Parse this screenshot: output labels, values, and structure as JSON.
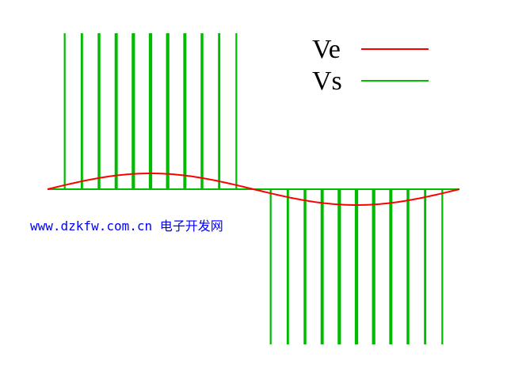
{
  "chart_data": {
    "type": "line",
    "description_of_marks": "",
    "reference": {
      "name": "Ve",
      "color": "#ff0000",
      "shape": "sine",
      "periods": 1,
      "relative_amplitude": 0.1
    },
    "pwm": {
      "name": "Vs",
      "color": "#00bb00",
      "pulses_per_half_cycle": 11,
      "levels": [
        1,
        -1
      ]
    },
    "legend": [
      {
        "label": "Ve",
        "color": "#ff0000"
      },
      {
        "label": "Vs",
        "color": "#00bb00"
      }
    ],
    "legend_position": "top-right",
    "grid": false
  },
  "watermark": "www.dzkfw.com.cn 电子开发网"
}
